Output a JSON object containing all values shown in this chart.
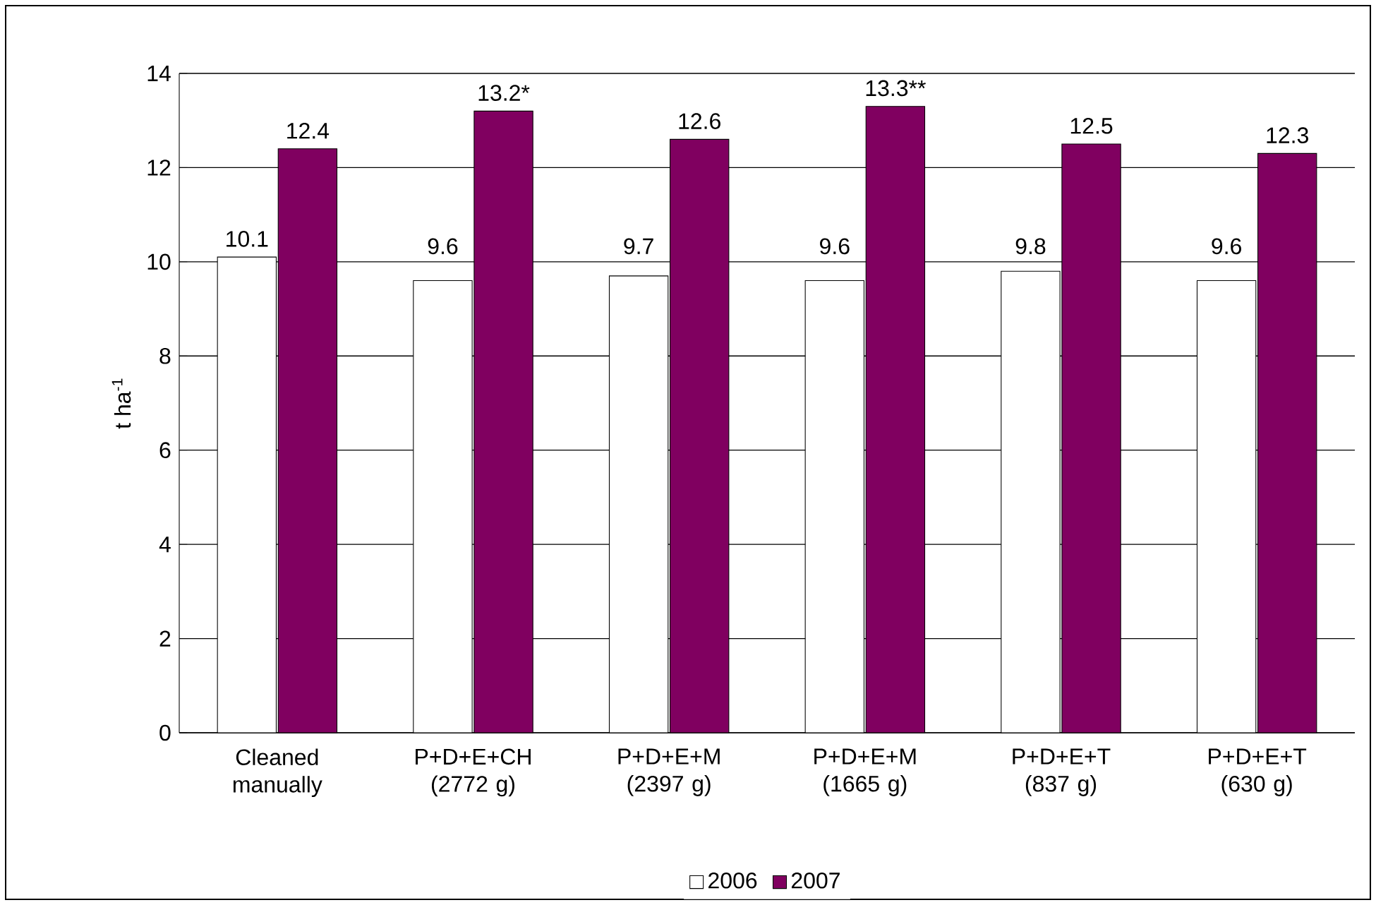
{
  "chart_data": {
    "type": "bar",
    "ylabel": "t ha$^{-1}$",
    "categories": [
      "Cleaned manually",
      "P+D+E+CH (2772 g)",
      "P+D+E+M (2397 g)",
      "P+D+E+M (1665 g)",
      "P+D+E+T (837 g)",
      "P+D+E+T (630 g)"
    ],
    "series": [
      {
        "name": "2006",
        "color": "#ffffff",
        "values": [
          10.1,
          9.6,
          9.7,
          9.6,
          9.8,
          9.6
        ],
        "value_labels": [
          "10.1",
          "9.6",
          "9.7",
          "9.6",
          "9.8",
          "9.6"
        ]
      },
      {
        "name": "2007",
        "color": "#800060",
        "values": [
          12.4,
          13.2,
          12.6,
          13.3,
          12.5,
          12.3
        ],
        "value_labels": [
          "12.4",
          "13.2*",
          "12.6",
          "13.3**",
          "12.5",
          "12.3"
        ]
      }
    ],
    "ylim": [
      0,
      14
    ],
    "yticks": [
      0,
      2,
      4,
      6,
      8,
      10,
      12,
      14
    ],
    "grid": "y",
    "legend": "bottom"
  }
}
